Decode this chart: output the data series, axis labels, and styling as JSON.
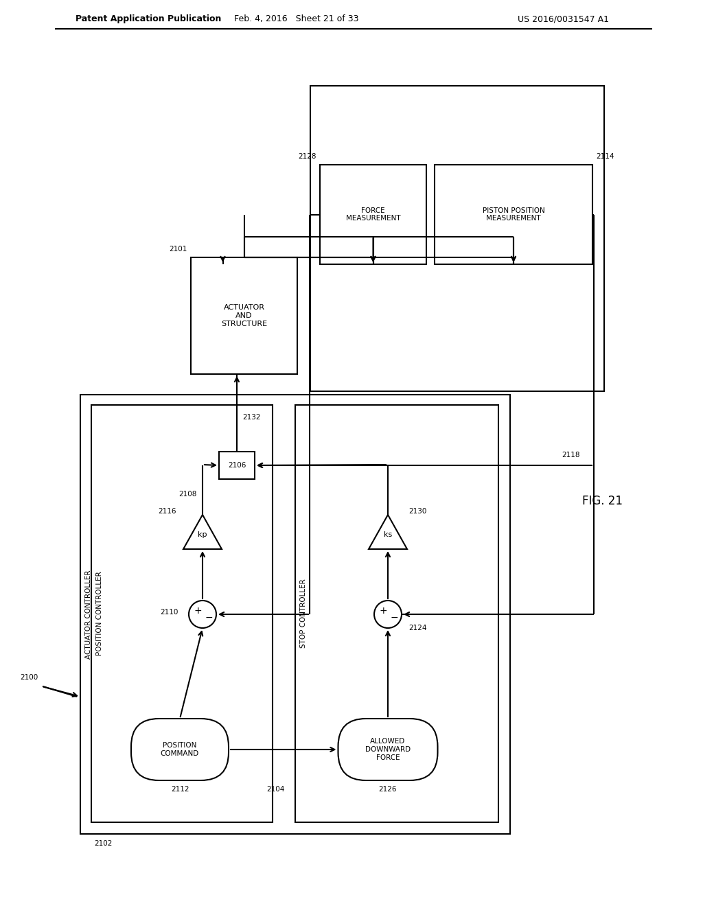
{
  "bg": "#ffffff",
  "lc": "#000000",
  "lw": 1.5,
  "header_left": "Patent Application Publication",
  "header_mid": "Feb. 4, 2016   Sheet 21 of 33",
  "header_right": "US 2016/0031547 A1",
  "fig_label": "FIG. 21",
  "text_actuator_ctrl": "ACTUATOR CONTROLLER",
  "text_pos_ctrl": "POSITION CONTROLLER",
  "text_stop_ctrl": "STOP CONTROLLER",
  "text_pos_cmd": "POSITION\nCOMMAND",
  "text_allowed_force": "ALLOWED\nDOWNWARD\nFORCE",
  "text_actuator_struct": "ACTUATOR\nAND\nSTRUCTURE",
  "text_force_meas": "FORCE\nMEASUREMENT",
  "text_piston_meas": "PISTON POSITION\nMEASUREMENT",
  "text_kp": "kp",
  "text_ks": "ks",
  "n2100": "2100",
  "n2101": "2101",
  "n2102": "2102",
  "n2104": "2104",
  "n2106": "2106",
  "n2108": "2108",
  "n2110": "2110",
  "n2112": "2112",
  "n2114": "2114",
  "n2116": "2116",
  "n2118": "2118",
  "n2124": "2124",
  "n2126": "2126",
  "n2128": "2128",
  "n2130": "2130",
  "n2132": "2132"
}
